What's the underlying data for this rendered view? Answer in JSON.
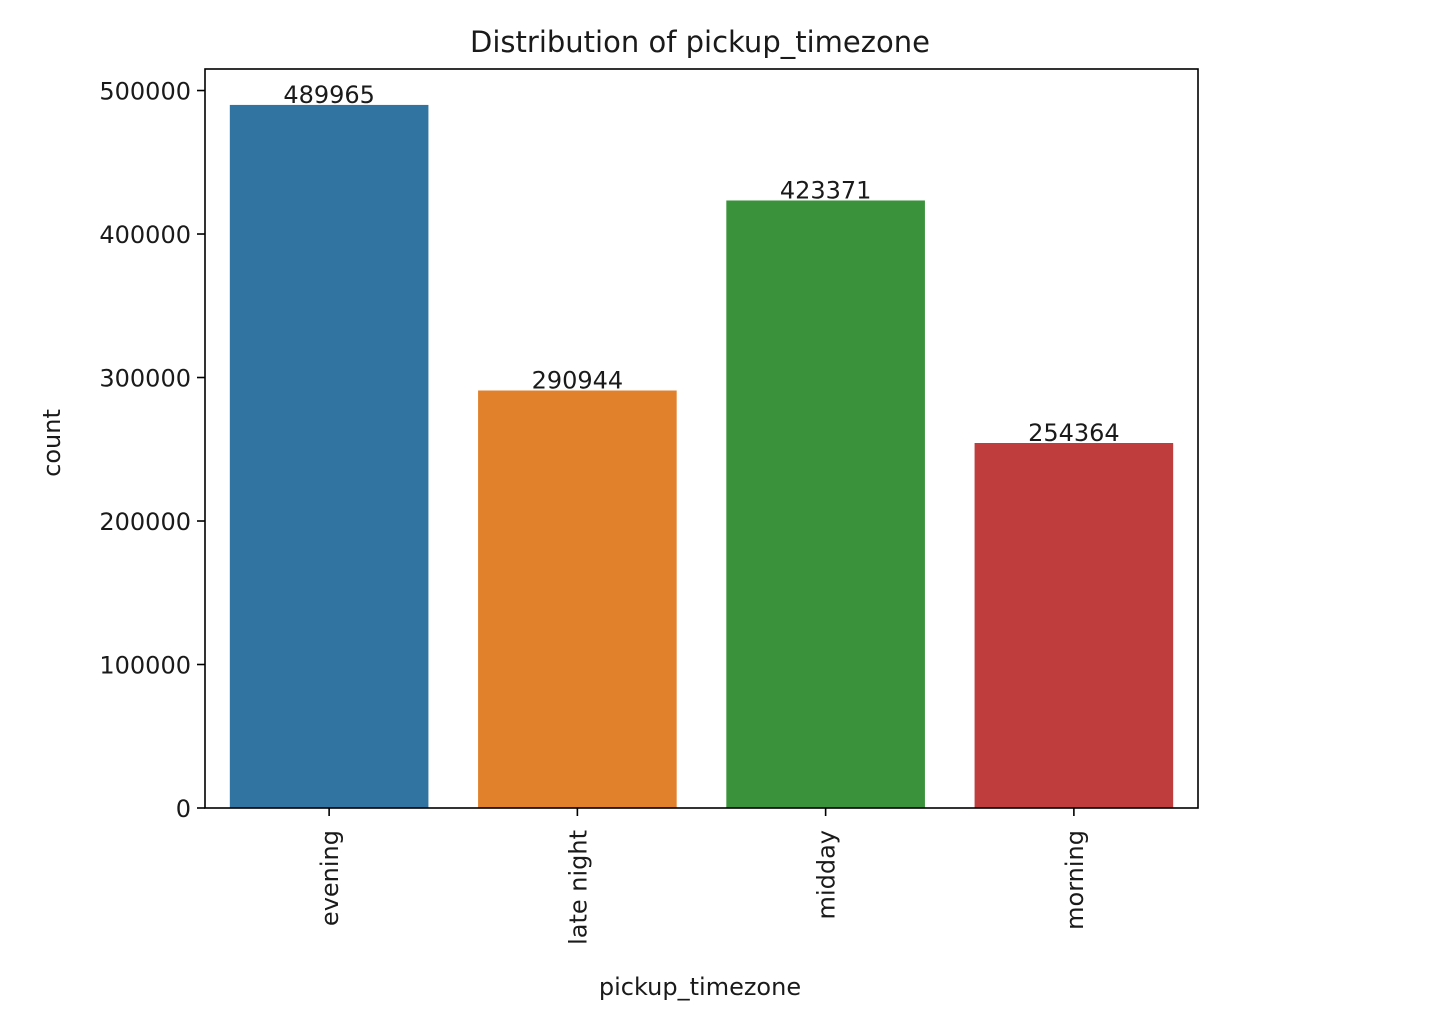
{
  "chart_data": {
    "type": "bar",
    "title": "Distribution of pickup_timezone",
    "xlabel": "pickup_timezone",
    "ylabel": "count",
    "categories": [
      "evening",
      "late night",
      "midday",
      "morning"
    ],
    "values": [
      489965,
      290944,
      423371,
      254364
    ],
    "data_labels": [
      "489965",
      "290944",
      "423371",
      "254364"
    ],
    "colors": [
      "#3274a1",
      "#e1812c",
      "#3a923a",
      "#c03d3e"
    ],
    "ylim": [
      0,
      515000
    ],
    "yticks": [
      0,
      100000,
      200000,
      300000,
      400000,
      500000
    ],
    "ytick_labels": [
      "0",
      "100000",
      "200000",
      "300000",
      "400000",
      "500000"
    ],
    "grid": false,
    "legend": "none"
  }
}
